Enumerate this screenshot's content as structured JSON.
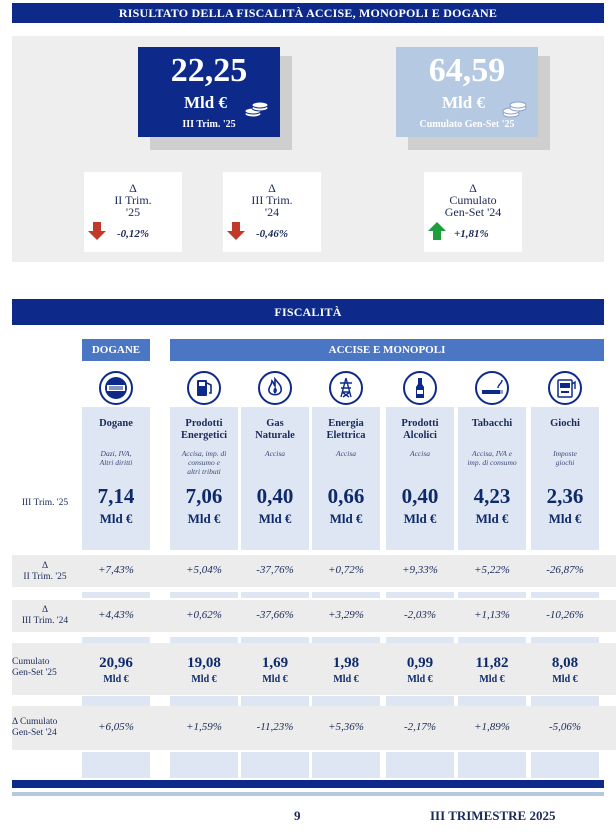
{
  "header_title": "RISULTATO DELLA FISCALITÀ ACCISE, MONOPOLI E DOGANE",
  "summary": {
    "quarter": {
      "value": "22,25",
      "unit": "Mld €",
      "label": "III Trim. '25"
    },
    "cumulative": {
      "value": "64,59",
      "unit": "Mld €",
      "label": "Cumulato Gen-Set '25"
    },
    "deltas": [
      {
        "l1": "Δ",
        "l2": "II Trim.",
        "l3": "'25",
        "value": "-0,12%",
        "direction": "down"
      },
      {
        "l1": "Δ",
        "l2": "III Trim.",
        "l3": "'24",
        "value": "-0,46%",
        "direction": "down"
      },
      {
        "l1": "Δ",
        "l2": "Cumulato",
        "l3": "Gen-Set '24",
        "value": "+1,81%",
        "direction": "up"
      }
    ]
  },
  "section_title": "FISCALITÀ",
  "group_dogane": "DOGANE",
  "group_accise": "ACCISE E MONOPOLI",
  "row_labels": {
    "q": "III Trim. '25",
    "dq1": "Δ",
    "dq2": "II Trim. '25",
    "dy1": "Δ",
    "dy2": "III Trim. '24",
    "cum1": "Cumulato",
    "cum2": "Gen-Set '25",
    "dcum1": "Δ Cumulato",
    "dcum2": "Gen-Set '24"
  },
  "unit": "Mld €",
  "columns": [
    {
      "icon": "dogana-seal-icon",
      "t1": "Dogane",
      "t2": "",
      "sub": [
        "Dazi, IVA,",
        "Altri diritti"
      ],
      "q": "7,14",
      "dq": "+7,43%",
      "dy": "+4,43%",
      "cum": "20,96",
      "dcum": "+6,05%"
    },
    {
      "icon": "fuel-pump-icon",
      "t1": "Prodotti",
      "t2": "Energetici",
      "sub": [
        "Accisa, imp. di",
        "consumo e",
        "altri tributi"
      ],
      "q": "7,06",
      "dq": "+5,04%",
      "dy": "+0,62%",
      "cum": "19,08",
      "dcum": "+1,59%"
    },
    {
      "icon": "flame-icon",
      "t1": "Gas",
      "t2": "Naturale",
      "sub": [
        "Accisa"
      ],
      "q": "0,40",
      "dq": "-37,76%",
      "dy": "-37,66%",
      "cum": "1,69",
      "dcum": "-11,23%"
    },
    {
      "icon": "power-pylon-icon",
      "t1": "Energia",
      "t2": "Elettrica",
      "sub": [
        "Accisa"
      ],
      "q": "0,66",
      "dq": "+0,72%",
      "dy": "+3,29%",
      "cum": "1,98",
      "dcum": "+5,36%"
    },
    {
      "icon": "bottle-icon",
      "t1": "Prodotti",
      "t2": "Alcolici",
      "sub": [
        "Accisa"
      ],
      "q": "0,40",
      "dq": "+9,33%",
      "dy": "-2,03%",
      "cum": "0,99",
      "dcum": "-2,17%"
    },
    {
      "icon": "cigarette-icon",
      "t1": "Tabacchi",
      "t2": "",
      "sub": [
        "Accisa, IVA e",
        "imp. di consumo"
      ],
      "q": "4,23",
      "dq": "+5,22%",
      "dy": "+1,13%",
      "cum": "11,82",
      "dcum": "+1,89%"
    },
    {
      "icon": "slot-machine-icon",
      "t1": "Giochi",
      "t2": "",
      "sub": [
        "Imposte",
        "giochi"
      ],
      "q": "2,36",
      "dq": "-26,87%",
      "dy": "-10,26%",
      "cum": "8,08",
      "dcum": "-5,06%"
    }
  ],
  "footer": {
    "page": "9",
    "title": "III TRIMESTRE 2025"
  },
  "colors": {
    "navy": "#0d2a8a",
    "light_blue": "#b6c9e3",
    "down": "#c0392b",
    "up": "#1e9e3a"
  }
}
